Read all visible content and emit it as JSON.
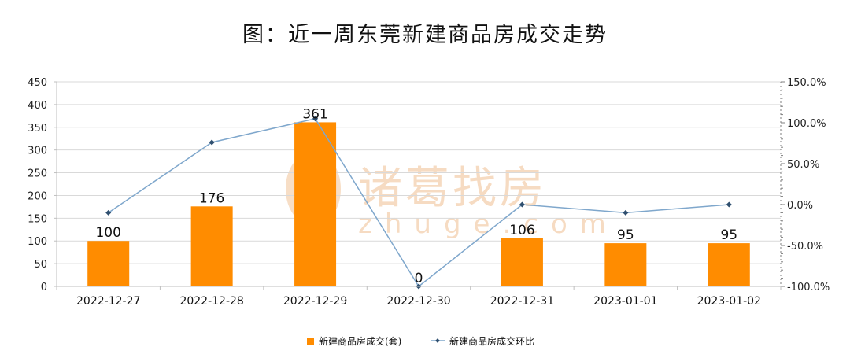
{
  "chart_data": {
    "type": "bar",
    "title": "图：近一周东莞新建商品房成交走势",
    "categories": [
      "2022-12-27",
      "2022-12-28",
      "2022-12-29",
      "2022-12-30",
      "2022-12-31",
      "2023-01-01",
      "2023-01-02"
    ],
    "series": [
      {
        "name": "新建商品房成交(套)",
        "type": "bar",
        "axis": "left",
        "color": "#FF8C00",
        "values": [
          100,
          176,
          361,
          0,
          106,
          95,
          95
        ]
      },
      {
        "name": "新建商品房成交环比",
        "type": "line",
        "axis": "right",
        "color": "#7FA7CC",
        "values": [
          -0.1,
          0.76,
          1.05,
          -1.0,
          0.0,
          -0.1,
          0.0
        ]
      }
    ],
    "data_labels": [
      "100",
      "176",
      "361",
      "0",
      "106",
      "95",
      "95"
    ],
    "ylim": [
      0,
      450
    ],
    "y_ticks": [
      "0",
      "50",
      "100",
      "150",
      "200",
      "250",
      "300",
      "350",
      "400",
      "450"
    ],
    "y2lim": [
      -1.0,
      1.5
    ],
    "y2_ticks": [
      "-100.0%",
      "-50.0%",
      "0.0%",
      "50.0%",
      "100.0%",
      "150.0%"
    ],
    "grid": true,
    "legend_position": "bottom",
    "watermark": {
      "brand": "诸葛找房",
      "domain": "zhuge.com",
      "color": "#F6D8BC"
    }
  }
}
